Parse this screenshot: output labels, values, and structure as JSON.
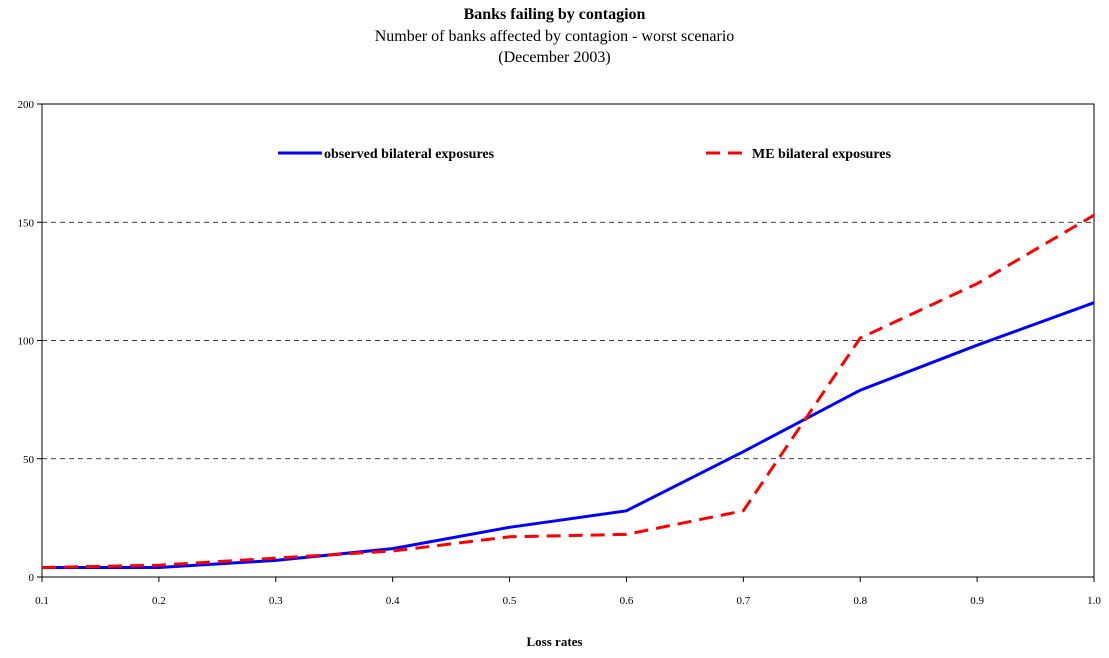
{
  "chart_data": {
    "type": "line",
    "title": "Banks failing by contagion",
    "subtitle": "Number of banks affected by contagion - worst scenario",
    "subtitle2": "(December 2003)",
    "xlabel": "Loss rates",
    "ylabel": "",
    "x": [
      0.1,
      0.2,
      0.3,
      0.4,
      0.5,
      0.6,
      0.7,
      0.8,
      0.9,
      1.0
    ],
    "x_tick_labels": [
      "0.1",
      "0.2",
      "0.3",
      "0.4",
      "0.5",
      "0.6",
      "0.7",
      "0.8",
      "0.9",
      "1.0"
    ],
    "ylim": [
      0,
      200
    ],
    "y_ticks": [
      0,
      50,
      100,
      150,
      200
    ],
    "grid": "horizontal dashed",
    "legend_position": "top",
    "series": [
      {
        "name": "observed bilateral exposures",
        "color": "#0000ff",
        "style": "solid",
        "values": [
          4,
          4,
          7,
          12,
          21,
          28,
          53,
          79,
          98,
          116
        ]
      },
      {
        "name": "ME bilateral exposures",
        "color": "#ff0000",
        "style": "dashed",
        "values": [
          4,
          5,
          8,
          11,
          17,
          18,
          28,
          101,
          124,
          153
        ]
      }
    ]
  }
}
